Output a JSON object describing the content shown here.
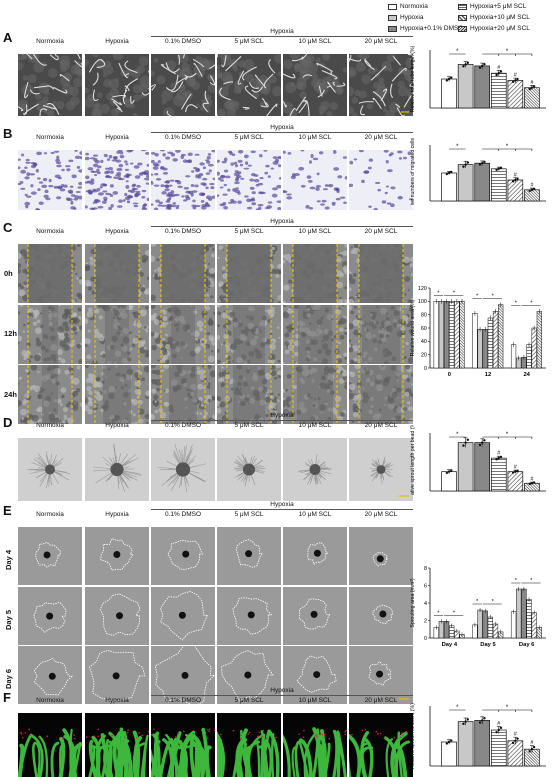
{
  "legend": [
    {
      "label": "Normoxia",
      "pattern": "white"
    },
    {
      "label": "Hypoxia",
      "pattern": "lightgray"
    },
    {
      "label": "Hypoxia+0.1% DMSO",
      "pattern": "darkgray"
    },
    {
      "label": "Hypoxia+5 μM SCL",
      "pattern": "hatch"
    },
    {
      "label": "Hypoxia+10 μM SCL",
      "pattern": "diag"
    },
    {
      "label": "Hypoxia+20 μM SCL",
      "pattern": "dense"
    }
  ],
  "columns": [
    "Normoxia",
    "Hypoxia",
    "0.1% DMSO",
    "5 μM SCL",
    "10 μM SCL",
    "20 μM SCL"
  ],
  "group_label": "Hypoxia",
  "panels": [
    {
      "id": "A",
      "imgtype": "tube"
    },
    {
      "id": "B",
      "imgtype": "migration"
    },
    {
      "id": "C",
      "imgtype": "wound",
      "rows": [
        "0h",
        "12h",
        "24h"
      ]
    },
    {
      "id": "D",
      "imgtype": "spheroid"
    },
    {
      "id": "E",
      "imgtype": "sprout",
      "rows": [
        "Day 4",
        "Day 5",
        "Day 6"
      ]
    },
    {
      "id": "F",
      "imgtype": "ring"
    }
  ],
  "chart_data": [
    {
      "panel": "A",
      "type": "bar",
      "ylabel": "Relative total tube length (%)",
      "ylim": [
        0,
        200
      ],
      "yticks": [],
      "categories": [
        "Normoxia",
        "Hypoxia",
        "Hypoxia+0.1% DMSO",
        "Hypoxia+5 μM SCL",
        "Hypoxia+10 μM SCL",
        "Hypoxia+20 μM SCL"
      ],
      "values": [
        100,
        150,
        145,
        120,
        95,
        70
      ],
      "errors": [
        8,
        10,
        10,
        10,
        8,
        8
      ],
      "marks": [
        "",
        "",
        "",
        "#",
        "#",
        "#"
      ],
      "sig": [
        "*",
        "*"
      ]
    },
    {
      "panel": "B",
      "type": "bar",
      "ylabel": "Relative numbers of migrated cells (%)",
      "ylim": [
        0,
        200
      ],
      "yticks": [],
      "categories": [
        "Normoxia",
        "Hypoxia",
        "Hypoxia+0.1% DMSO",
        "Hypoxia+5 μM SCL",
        "Hypoxia+10 μM SCL",
        "Hypoxia+20 μM SCL"
      ],
      "values": [
        100,
        130,
        135,
        115,
        75,
        40
      ],
      "errors": [
        6,
        12,
        8,
        6,
        8,
        6
      ],
      "marks": [
        "",
        "",
        "",
        "",
        "#",
        "#"
      ],
      "sig": [
        "*",
        "*"
      ]
    },
    {
      "panel": "C",
      "type": "bar",
      "ylabel": "Relative wound area (%)",
      "ylim": [
        0,
        120
      ],
      "yticks": [
        0,
        20,
        40,
        60,
        80,
        100,
        120
      ],
      "groups": [
        "0",
        "12",
        "24"
      ],
      "series": [
        {
          "name": "Normoxia",
          "values": [
            100,
            82,
            35
          ]
        },
        {
          "name": "Hypoxia",
          "values": [
            100,
            58,
            15
          ]
        },
        {
          "name": "Hypoxia+0.1% DMSO",
          "values": [
            100,
            58,
            16
          ]
        },
        {
          "name": "Hypoxia+5 μM SCL",
          "values": [
            100,
            75,
            35
          ]
        },
        {
          "name": "Hypoxia+10 μM SCL",
          "values": [
            100,
            85,
            60
          ]
        },
        {
          "name": "Hypoxia+20 μM SCL",
          "values": [
            100,
            95,
            85
          ]
        }
      ],
      "sig": [
        "*",
        "*",
        "*",
        "*"
      ]
    },
    {
      "panel": "D",
      "type": "bar",
      "ylabel": "Relative sprout length per bead (%)",
      "ylim": [
        0,
        300
      ],
      "yticks": [],
      "categories": [
        "Normoxia",
        "Hypoxia",
        "Hypoxia+0.1% DMSO",
        "Hypoxia+5 μM SCL",
        "Hypoxia+10 μM SCL",
        "Hypoxia+20 μM SCL"
      ],
      "values": [
        100,
        250,
        250,
        170,
        100,
        40
      ],
      "errors": [
        10,
        25,
        20,
        10,
        8,
        6
      ],
      "marks": [
        "",
        "",
        "",
        "#",
        "#",
        "#"
      ],
      "sig": [
        "*",
        "*"
      ]
    },
    {
      "panel": "E",
      "type": "bar",
      "ylabel": "Sprouting area (mm²)",
      "ylim": [
        0,
        8
      ],
      "yticks": [
        0,
        2,
        4,
        6,
        8
      ],
      "groups": [
        "Day 4",
        "Day 5",
        "Day 6"
      ],
      "series": [
        {
          "name": "Normoxia",
          "values": [
            1.2,
            1.5,
            3.0
          ]
        },
        {
          "name": "Hypoxia",
          "values": [
            1.9,
            3.2,
            5.6
          ]
        },
        {
          "name": "Hypoxia+0.1% DMSO",
          "values": [
            1.9,
            3.1,
            5.6
          ]
        },
        {
          "name": "Hypoxia+5 μM SCL",
          "values": [
            1.4,
            2.4,
            4.4
          ]
        },
        {
          "name": "Hypoxia+10 μM SCL",
          "values": [
            0.8,
            1.6,
            2.9
          ]
        },
        {
          "name": "Hypoxia+20 μM SCL",
          "values": [
            0.4,
            0.7,
            1.2
          ]
        }
      ],
      "sig": [
        "*",
        "*",
        "*",
        "*",
        "*",
        "*"
      ]
    },
    {
      "panel": "F",
      "type": "bar",
      "ylabel": "Relative sprout numbers (%)",
      "ylim": [
        0,
        250
      ],
      "yticks": [],
      "categories": [
        "Normoxia",
        "Hypoxia",
        "Hypoxia+0.1% DMSO",
        "Hypoxia+5 μM SCL",
        "Hypoxia+10 μM SCL",
        "Hypoxia+20 μM SCL"
      ],
      "values": [
        100,
        185,
        190,
        150,
        105,
        70
      ],
      "errors": [
        10,
        15,
        15,
        15,
        15,
        15
      ],
      "marks": [
        "",
        "",
        "",
        "#",
        "#",
        "#"
      ],
      "sig": [
        "*",
        "*"
      ]
    }
  ]
}
